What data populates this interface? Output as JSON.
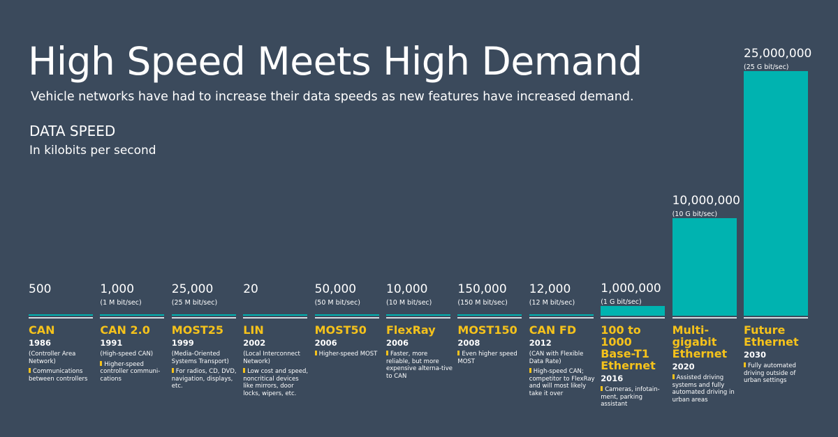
{
  "title": "High Speed Meets High Demand",
  "subtitle": "Vehicle networks have had to increase their data speeds as new features have increased demand.",
  "chart_data": {
    "type": "bar",
    "ylabel": "DATA SPEED",
    "yunit": "In kilobits per second",
    "ylim": [
      0,
      25000000
    ],
    "colors": {
      "bar": "#00b3b0",
      "name": "#f5c21b",
      "background": "#3b4a5c"
    },
    "categories": [
      "CAN",
      "CAN 2.0",
      "MOST25",
      "LIN",
      "MOST50",
      "FlexRay",
      "MOST150",
      "CAN FD",
      "100 to 1000 Base-T1 Ethernet",
      "Multi-gigabit Ethernet",
      "Future Ethernet"
    ],
    "values": [
      500,
      1000,
      25000,
      20,
      50000,
      10000,
      150000,
      12000,
      1000000,
      10000000,
      25000000
    ],
    "items": [
      {
        "name": "CAN",
        "year": "1986",
        "value_label": "500",
        "value_sub": "",
        "desc": "(Controller Area Network)",
        "note": "Communications between controllers"
      },
      {
        "name": "CAN 2.0",
        "year": "1991",
        "value_label": "1,000",
        "value_sub": "(1 M bit/sec)",
        "desc": "(High-speed CAN)",
        "note": "Higher-speed controller communi-cations"
      },
      {
        "name": "MOST25",
        "year": "1999",
        "value_label": "25,000",
        "value_sub": "(25 M bit/sec)",
        "desc": "(Media-Oriented Systems Transport)",
        "note": "For radios, CD, DVD, navigation, displays, etc."
      },
      {
        "name": "LIN",
        "year": "2002",
        "value_label": "20",
        "value_sub": "",
        "desc": "(Local Interconnect Network)",
        "note": "Low cost and speed, noncritical devices like mirrors, door locks, wipers, etc."
      },
      {
        "name": "MOST50",
        "year": "2006",
        "value_label": "50,000",
        "value_sub": "(50 M bit/sec)",
        "desc": "",
        "note": "Higher-speed MOST"
      },
      {
        "name": "FlexRay",
        "year": "2006",
        "value_label": "10,000",
        "value_sub": "(10 M bit/sec)",
        "desc": "",
        "note": "Faster, more reliable, but more expensive alterna-tive to CAN"
      },
      {
        "name": "MOST150",
        "year": "2008",
        "value_label": "150,000",
        "value_sub": "(150 M bit/sec)",
        "desc": "",
        "note": "Even higher speed MOST"
      },
      {
        "name": "CAN FD",
        "year": "2012",
        "value_label": "12,000",
        "value_sub": "(12 M bit/sec)",
        "desc": "(CAN with Flexible Data Rate)",
        "note": "High-speed CAN; competitor to FlexRay and will most likely take it over"
      },
      {
        "name": "100 to 1000 Base-T1 Ethernet",
        "year": "2016",
        "value_label": "1,000,000",
        "value_sub": "(1 G bit/sec)",
        "desc": "",
        "note": "Cameras, infotain-ment, parking assistant"
      },
      {
        "name": "Multi-gigabit Ethernet",
        "year": "2020",
        "value_label": "10,000,000",
        "value_sub": "(10 G bit/sec)",
        "desc": "",
        "note": "Assisted driving systems and fully automated driving in urban areas"
      },
      {
        "name": "Future Ethernet",
        "year": "2030",
        "value_label": "25,000,000",
        "value_sub": "(25 G bit/sec)",
        "desc": "",
        "note": "Fully automated driving outside of urban settings"
      }
    ]
  }
}
